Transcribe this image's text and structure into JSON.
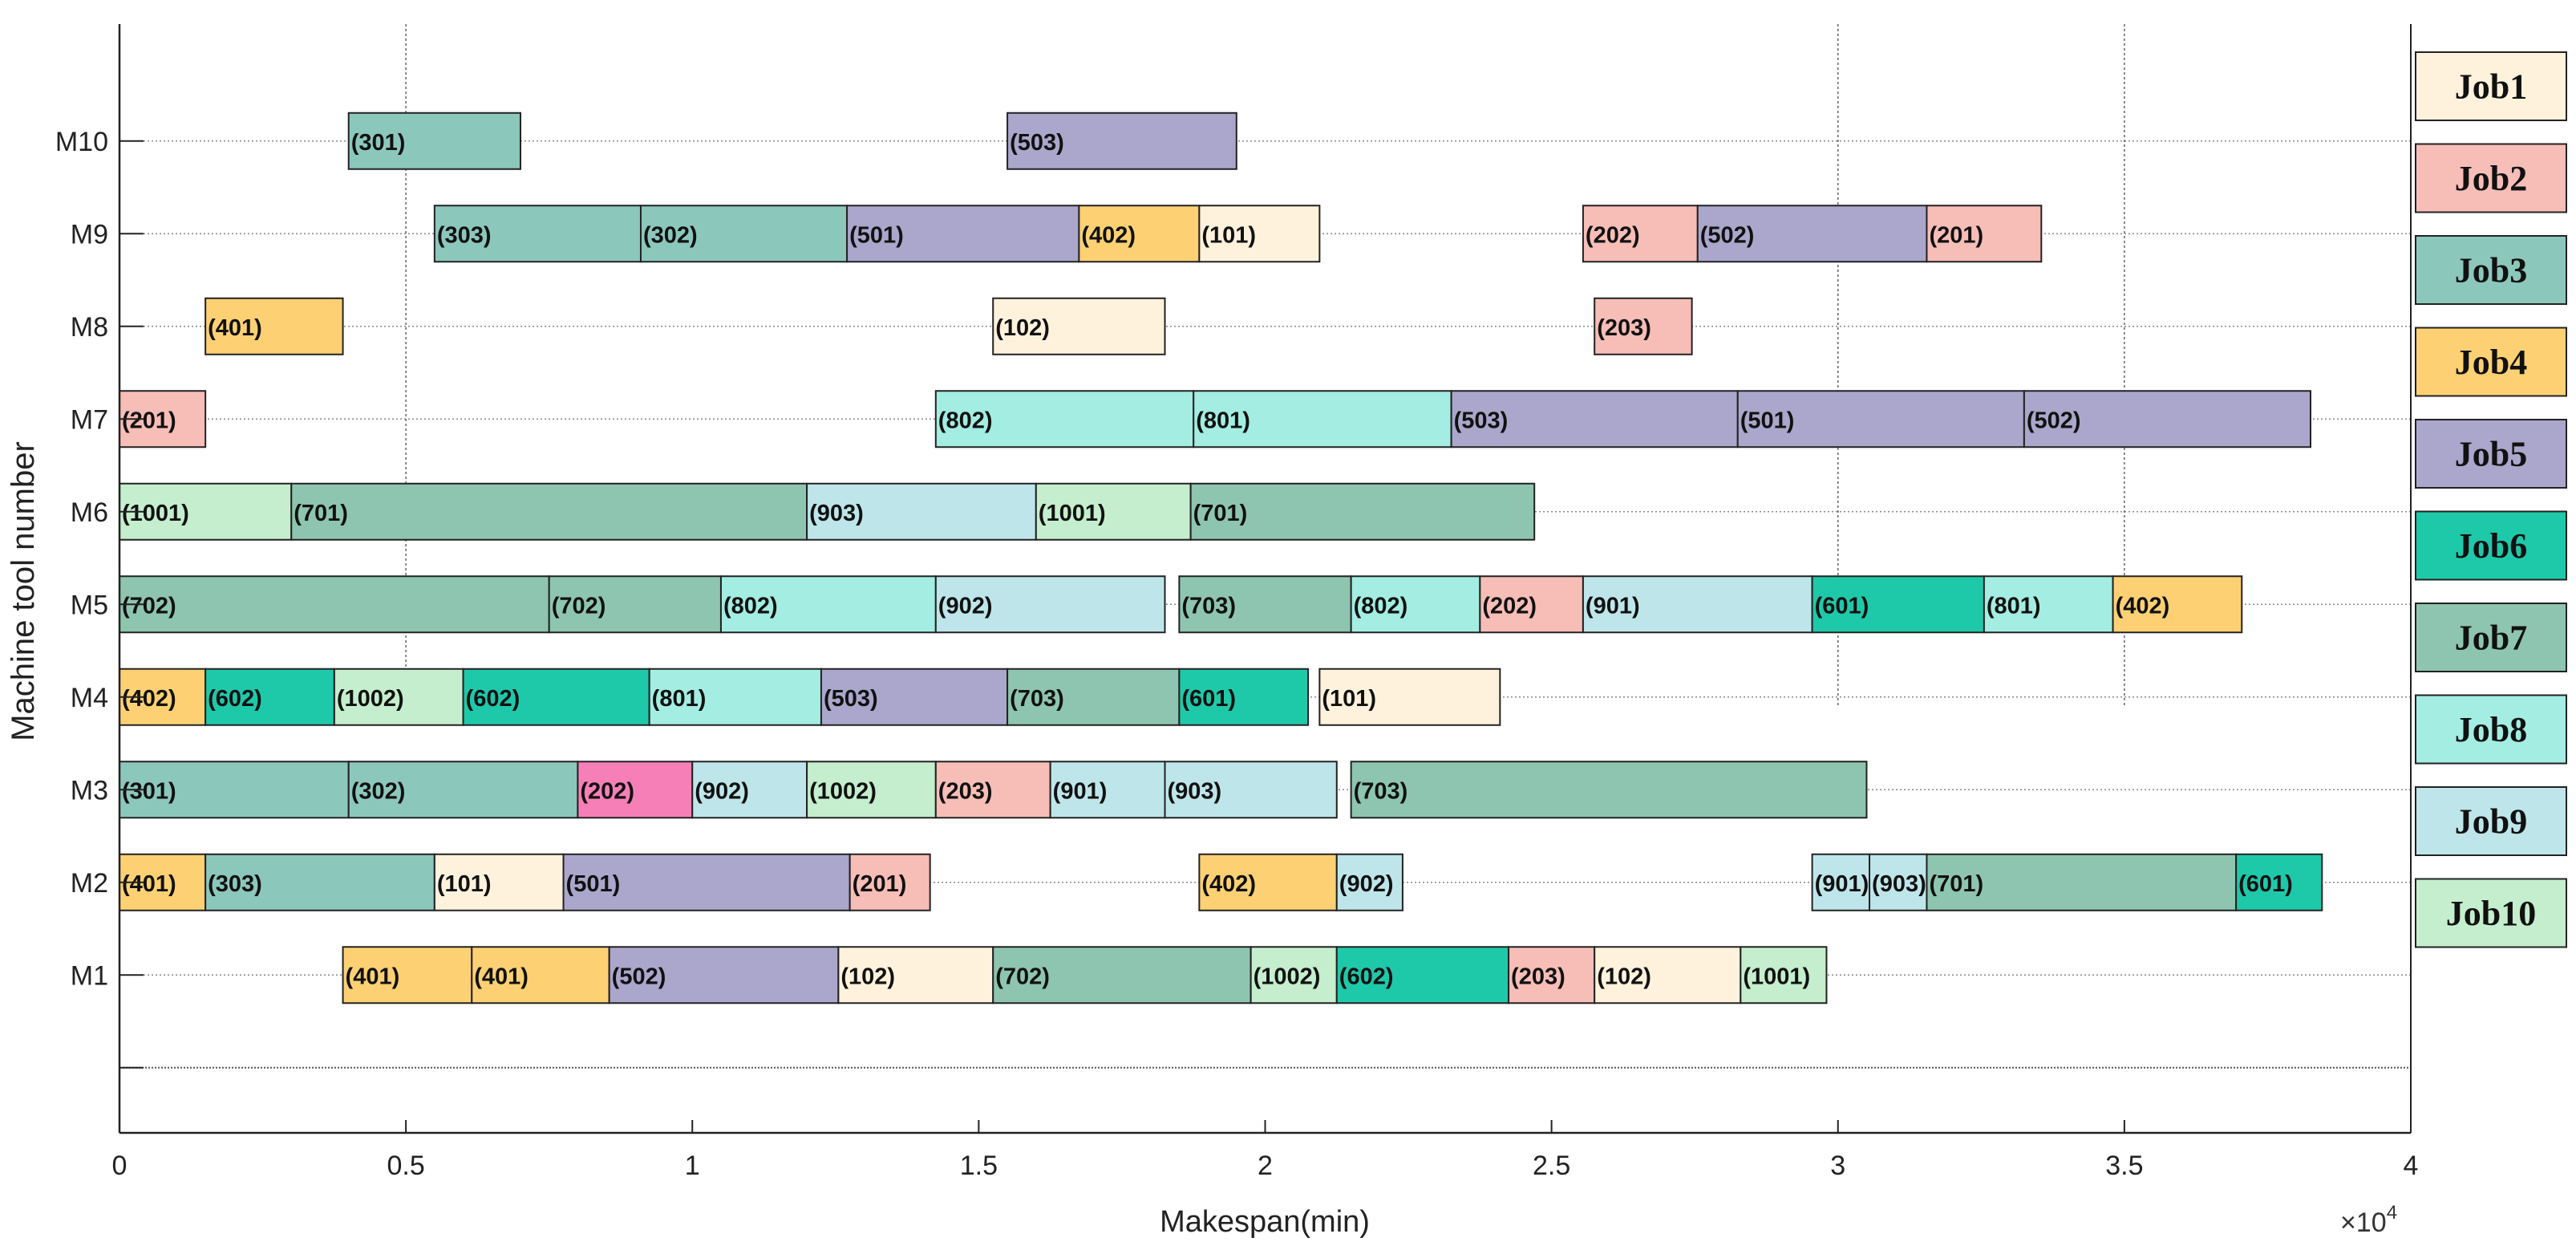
{
  "chart_data": {
    "type": "gantt",
    "title": "",
    "xlabel": "Makespan(min)",
    "ylabel": "Machine tool number",
    "x_exponent_label": "×10",
    "x_exponent_power": "4",
    "xlim": [
      0,
      40000
    ],
    "x_ticks": [
      {
        "value": 0,
        "label": "0"
      },
      {
        "value": 5000,
        "label": "0.5"
      },
      {
        "value": 10000,
        "label": "1"
      },
      {
        "value": 15000,
        "label": "1.5"
      },
      {
        "value": 20000,
        "label": "2"
      },
      {
        "value": 25000,
        "label": "2.5"
      },
      {
        "value": 30000,
        "label": "3"
      },
      {
        "value": 35000,
        "label": "3.5"
      },
      {
        "value": 40000,
        "label": "4"
      }
    ],
    "machines": [
      "M1",
      "M2",
      "M3",
      "M4",
      "M5",
      "M6",
      "M7",
      "M8",
      "M9",
      "M10"
    ],
    "legend_position": "right",
    "legend": [
      {
        "label": "Job1",
        "color": "#fff2dc"
      },
      {
        "label": "Job2",
        "color": "#f7bdb7"
      },
      {
        "label": "Job3",
        "color": "#8cc7bc"
      },
      {
        "label": "Job4",
        "color": "#fdd173"
      },
      {
        "label": "Job5",
        "color": "#aba6cb"
      },
      {
        "label": "Job6",
        "color": "#1ec9aa"
      },
      {
        "label": "Job7",
        "color": "#8ec5b0"
      },
      {
        "label": "Job8",
        "color": "#a3ede2"
      },
      {
        "label": "Job9",
        "color": "#bee6ea"
      },
      {
        "label": "Job10",
        "color": "#c4eecd"
      }
    ],
    "tasks": [
      {
        "machine": "M10",
        "label": "(301)",
        "job": 3,
        "start": 4000,
        "end": 7000
      },
      {
        "machine": "M10",
        "label": "(503)",
        "job": 5,
        "start": 15500,
        "end": 19500
      },
      {
        "machine": "M9",
        "label": "(303)",
        "job": 3,
        "start": 5500,
        "end": 9100
      },
      {
        "machine": "M9",
        "label": "(302)",
        "job": 3,
        "start": 9100,
        "end": 12700
      },
      {
        "machine": "M9",
        "label": "(501)",
        "job": 5,
        "start": 12700,
        "end": 16750
      },
      {
        "machine": "M9",
        "label": "(402)",
        "job": 4,
        "start": 16750,
        "end": 18850
      },
      {
        "machine": "M9",
        "label": "(101)",
        "job": 1,
        "start": 18850,
        "end": 20950
      },
      {
        "machine": "M9",
        "label": "(202)",
        "job": 2,
        "start": 25550,
        "end": 27550
      },
      {
        "machine": "M9",
        "label": "(502)",
        "job": 5,
        "start": 27550,
        "end": 31550
      },
      {
        "machine": "M9",
        "label": "(201)",
        "job": 2,
        "start": 31550,
        "end": 33550
      },
      {
        "machine": "M8",
        "label": "(401)",
        "job": 4,
        "start": 1500,
        "end": 3900
      },
      {
        "machine": "M8",
        "label": "(102)",
        "job": 1,
        "start": 15250,
        "end": 18250
      },
      {
        "machine": "M8",
        "label": "(203)",
        "job": 2,
        "start": 25750,
        "end": 27450
      },
      {
        "machine": "M7",
        "label": "(201)",
        "job": 2,
        "start": 0,
        "end": 1500
      },
      {
        "machine": "M7",
        "label": "(802)",
        "job": 8,
        "start": 14250,
        "end": 18750
      },
      {
        "machine": "M7",
        "label": "(801)",
        "job": 8,
        "start": 18750,
        "end": 23250
      },
      {
        "machine": "M7",
        "label": "(503)",
        "job": 5,
        "start": 23250,
        "end": 28250
      },
      {
        "machine": "M7",
        "label": "(501)",
        "job": 5,
        "start": 28250,
        "end": 33250
      },
      {
        "machine": "M7",
        "label": "(502)",
        "job": 5,
        "start": 33250,
        "end": 38250
      },
      {
        "machine": "M6",
        "label": "(1001)",
        "job": 10,
        "start": 0,
        "end": 3000
      },
      {
        "machine": "M6",
        "label": "(701)",
        "job": 7,
        "start": 3000,
        "end": 12000
      },
      {
        "machine": "M6",
        "label": "(903)",
        "job": 9,
        "start": 12000,
        "end": 16000
      },
      {
        "machine": "M6",
        "label": "(1001)",
        "job": 10,
        "start": 16000,
        "end": 18700
      },
      {
        "machine": "M6",
        "label": "(701)",
        "job": 7,
        "start": 18700,
        "end": 24700
      },
      {
        "machine": "M5",
        "label": "(702)",
        "job": 7,
        "start": 0,
        "end": 7500
      },
      {
        "machine": "M5",
        "label": "(702)",
        "job": 7,
        "start": 7500,
        "end": 10500
      },
      {
        "machine": "M5",
        "label": "(802)",
        "job": 8,
        "start": 10500,
        "end": 14250
      },
      {
        "machine": "M5",
        "label": "(902)",
        "job": 9,
        "start": 14250,
        "end": 18250
      },
      {
        "machine": "M5",
        "label": "(703)",
        "job": 7,
        "start": 18500,
        "end": 21500
      },
      {
        "machine": "M5",
        "label": "(802)",
        "job": 8,
        "start": 21500,
        "end": 23750
      },
      {
        "machine": "M5",
        "label": "(202)",
        "job": 2,
        "start": 23750,
        "end": 25550
      },
      {
        "machine": "M5",
        "label": "(901)",
        "job": 9,
        "start": 25550,
        "end": 29550
      },
      {
        "machine": "M5",
        "label": "(601)",
        "job": 6,
        "start": 29550,
        "end": 32550
      },
      {
        "machine": "M5",
        "label": "(801)",
        "job": 8,
        "start": 32550,
        "end": 34800
      },
      {
        "machine": "M5",
        "label": "(402)",
        "job": 4,
        "start": 34800,
        "end": 37050
      },
      {
        "machine": "M4",
        "label": "(402)",
        "job": 4,
        "start": 0,
        "end": 1500
      },
      {
        "machine": "M4",
        "label": "(602)",
        "job": 6,
        "start": 1500,
        "end": 3750
      },
      {
        "machine": "M4",
        "label": "(1002)",
        "job": 10,
        "start": 3750,
        "end": 6000
      },
      {
        "machine": "M4",
        "label": "(602)",
        "job": 6,
        "start": 6000,
        "end": 9250
      },
      {
        "machine": "M4",
        "label": "(801)",
        "job": 8,
        "start": 9250,
        "end": 12250
      },
      {
        "machine": "M4",
        "label": "(503)",
        "job": 5,
        "start": 12250,
        "end": 15500
      },
      {
        "machine": "M4",
        "label": "(703)",
        "job": 7,
        "start": 15500,
        "end": 18500
      },
      {
        "machine": "M4",
        "label": "(601)",
        "job": 6,
        "start": 18500,
        "end": 20750
      },
      {
        "machine": "M4",
        "label": "(101)",
        "job": 1,
        "start": 20950,
        "end": 24100
      },
      {
        "machine": "M3",
        "label": "(301)",
        "job": 3,
        "start": 0,
        "end": 4000
      },
      {
        "machine": "M3",
        "label": "(302)",
        "job": 3,
        "start": 4000,
        "end": 8000
      },
      {
        "machine": "M3",
        "label": "(202)",
        "job": 2,
        "start": 8000,
        "end": 10000,
        "color": "#f77fb7"
      },
      {
        "machine": "M3",
        "label": "(902)",
        "job": 9,
        "start": 10000,
        "end": 12000
      },
      {
        "machine": "M3",
        "label": "(1002)",
        "job": 10,
        "start": 12000,
        "end": 14250
      },
      {
        "machine": "M3",
        "label": "(203)",
        "job": 2,
        "start": 14250,
        "end": 16250
      },
      {
        "machine": "M3",
        "label": "(901)",
        "job": 9,
        "start": 16250,
        "end": 18250
      },
      {
        "machine": "M3",
        "label": "(903)",
        "job": 9,
        "start": 18250,
        "end": 21250
      },
      {
        "machine": "M3",
        "label": "(703)",
        "job": 7,
        "start": 21500,
        "end": 30500
      },
      {
        "machine": "M2",
        "label": "(401)",
        "job": 4,
        "start": 0,
        "end": 1500
      },
      {
        "machine": "M2",
        "label": "(303)",
        "job": 3,
        "start": 1500,
        "end": 5500
      },
      {
        "machine": "M2",
        "label": "(101)",
        "job": 1,
        "start": 5500,
        "end": 7750
      },
      {
        "machine": "M2",
        "label": "(501)",
        "job": 5,
        "start": 7750,
        "end": 12750
      },
      {
        "machine": "M2",
        "label": "(201)",
        "job": 2,
        "start": 12750,
        "end": 14150
      },
      {
        "machine": "M2",
        "label": "(402)",
        "job": 4,
        "start": 18850,
        "end": 21250
      },
      {
        "machine": "M2",
        "label": "(902)",
        "job": 9,
        "start": 21250,
        "end": 22400
      },
      {
        "machine": "M2",
        "label": "(901)",
        "job": 9,
        "start": 29550,
        "end": 30550
      },
      {
        "machine": "M2",
        "label": "(903)",
        "job": 9,
        "start": 30550,
        "end": 31550
      },
      {
        "machine": "M2",
        "label": "(701)",
        "job": 7,
        "start": 31550,
        "end": 36950
      },
      {
        "machine": "M2",
        "label": "(601)",
        "job": 6,
        "start": 36950,
        "end": 38450
      },
      {
        "machine": "M1",
        "label": "(401)",
        "job": 4,
        "start": 3900,
        "end": 6150
      },
      {
        "machine": "M1",
        "label": "(401)",
        "job": 4,
        "start": 6150,
        "end": 8550
      },
      {
        "machine": "M1",
        "label": "(502)",
        "job": 5,
        "start": 8550,
        "end": 12550
      },
      {
        "machine": "M1",
        "label": "(102)",
        "job": 1,
        "start": 12550,
        "end": 15250
      },
      {
        "machine": "M1",
        "label": "(702)",
        "job": 7,
        "start": 15250,
        "end": 19750
      },
      {
        "machine": "M1",
        "label": "(1002)",
        "job": 10,
        "start": 19750,
        "end": 21250
      },
      {
        "machine": "M1",
        "label": "(602)",
        "job": 6,
        "start": 21250,
        "end": 24250
      },
      {
        "machine": "M1",
        "label": "(203)",
        "job": 2,
        "start": 24250,
        "end": 25750
      },
      {
        "machine": "M1",
        "label": "(102)",
        "job": 1,
        "start": 25750,
        "end": 28300
      },
      {
        "machine": "M1",
        "label": "(1001)",
        "job": 10,
        "start": 28300,
        "end": 29800
      }
    ]
  }
}
